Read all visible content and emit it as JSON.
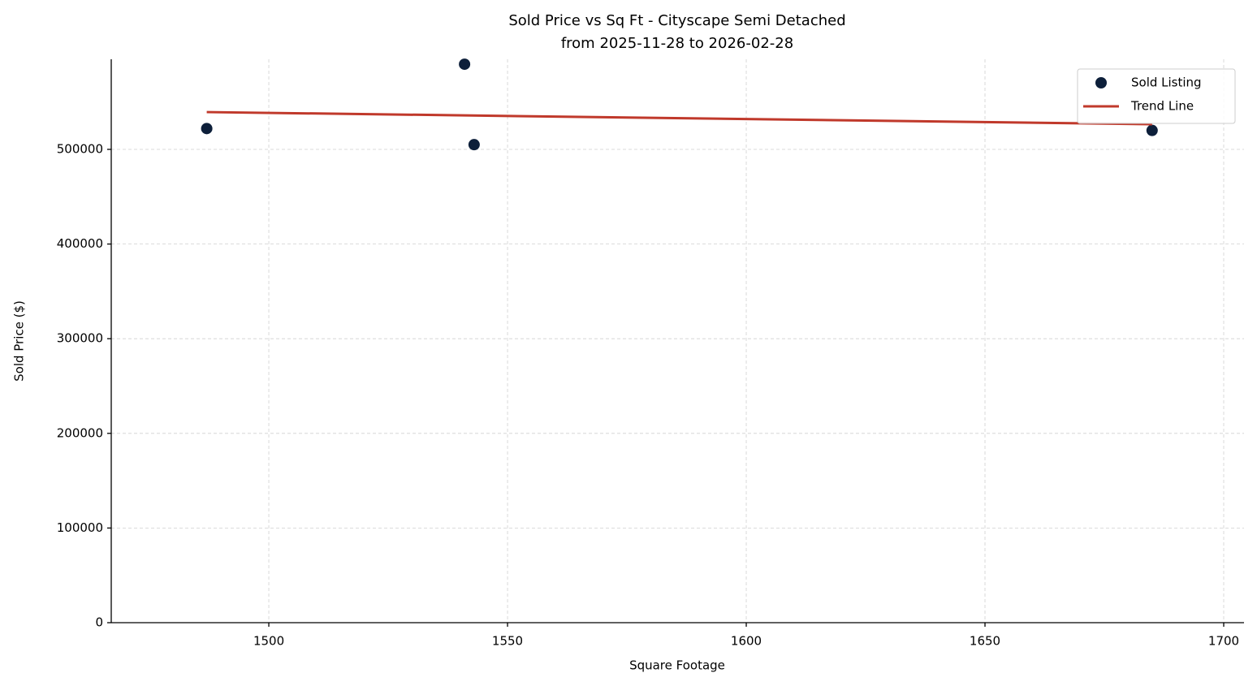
{
  "chart_data": {
    "type": "scatter",
    "title": "Sold Price vs Sq Ft - Cityscape Semi Detached",
    "subtitle": "from 2025-11-28 to 2026-02-28",
    "x_label": "Square Footage",
    "y_label": "Sold Price ($)",
    "series": [
      {
        "name": "Sold Listing",
        "color": "#0d1f3a",
        "mode": "markers",
        "x": [
          1487,
          1541,
          1543,
          1685
        ],
        "values": [
          522000,
          590000,
          505000,
          520000
        ]
      },
      {
        "name": "Trend Line",
        "color": "#c0392b",
        "mode": "line",
        "x": [
          1487,
          1685
        ],
        "values": [
          539400,
          526600
        ]
      }
    ],
    "xlim": [
      1467,
      1704.25
    ],
    "ylim": [
      0,
      595200
    ],
    "xticks": [
      1500,
      1550,
      1600,
      1650,
      1700
    ],
    "yticks": [
      0,
      100000,
      200000,
      300000,
      400000,
      500000
    ],
    "grid": true,
    "legend": "upper right"
  }
}
